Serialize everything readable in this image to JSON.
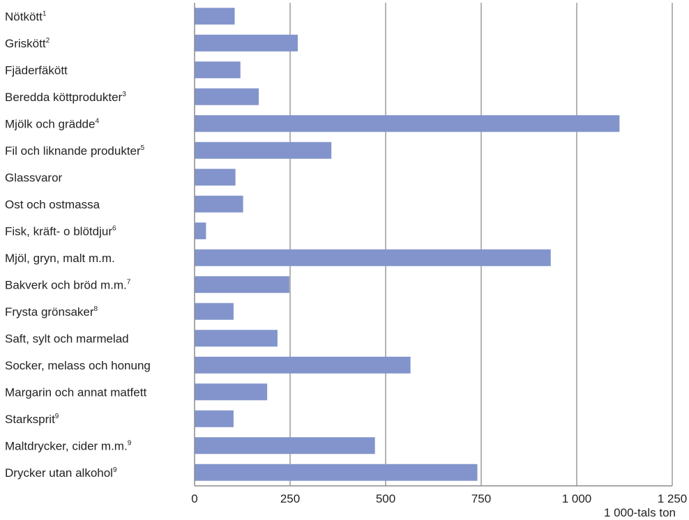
{
  "chart_data": {
    "type": "bar",
    "orientation": "horizontal",
    "categories": [
      {
        "label": "Nötkött",
        "note": "1"
      },
      {
        "label": "Griskött",
        "note": "2"
      },
      {
        "label": "Fjäderfäkött",
        "note": ""
      },
      {
        "label": "Beredda köttprodukter",
        "note": "3"
      },
      {
        "label": "Mjölk och grädde",
        "note": "4"
      },
      {
        "label": "Fil och liknande produkter",
        "note": "5"
      },
      {
        "label": "Glassvaror",
        "note": ""
      },
      {
        "label": "Ost och ostmassa",
        "note": ""
      },
      {
        "label": "Fisk, kräft- o blötdjur",
        "note": "6"
      },
      {
        "label": "Mjöl, gryn, malt m.m.",
        "note": ""
      },
      {
        "label": "Bakverk och bröd m.m.",
        "note": "7"
      },
      {
        "label": "Frysta grönsaker",
        "note": "8"
      },
      {
        "label": "Saft, sylt och marmelad",
        "note": ""
      },
      {
        "label": "Socker, melass och honung",
        "note": ""
      },
      {
        "label": "Margarin och annat matfett",
        "note": ""
      },
      {
        "label": "Starksprit",
        "note": "9"
      },
      {
        "label": "Maltdrycker, cider m.m.",
        "note": "9"
      },
      {
        "label": "Drycker utan alkohol",
        "note": "9"
      }
    ],
    "values": [
      105,
      270,
      120,
      168,
      1112,
      358,
      107,
      127,
      30,
      932,
      248,
      102,
      217,
      565,
      190,
      102,
      472,
      740
    ],
    "xlim": [
      0,
      1250
    ],
    "xticks": [
      0,
      250,
      500,
      750,
      1000,
      1250
    ],
    "xtick_labels": [
      "0",
      "250",
      "500",
      "750",
      "1 000",
      "1 250"
    ],
    "xlabel": "1 000-tals ton",
    "grid": "vertical",
    "bar_color": "#8294cb",
    "grid_color": "#b3b3b3",
    "axis_color": "#8c8c8c"
  }
}
